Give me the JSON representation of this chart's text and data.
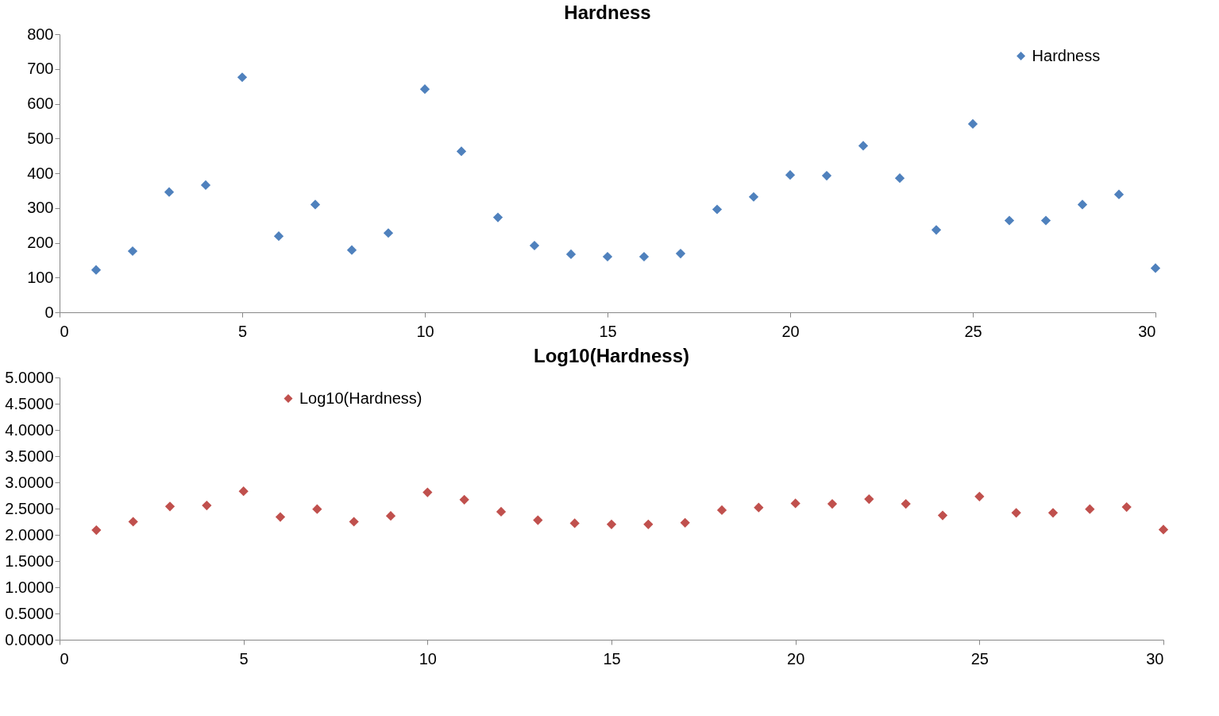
{
  "chart_data": [
    {
      "type": "scatter",
      "title": "Hardness",
      "x": [
        1,
        2,
        3,
        4,
        5,
        6,
        7,
        8,
        9,
        10,
        11,
        12,
        13,
        14,
        15,
        16,
        17,
        18,
        19,
        20,
        21,
        22,
        23,
        24,
        25,
        26,
        27,
        28,
        29,
        30
      ],
      "series": [
        {
          "name": "Hardness",
          "color": "#4f81bd",
          "values": [
            122,
            176,
            346,
            366,
            676,
            219,
            310,
            179,
            228,
            642,
            463,
            273,
            192,
            167,
            160,
            160,
            169,
            296,
            332,
            395,
            393,
            479,
            386,
            237,
            542,
            264,
            264,
            310,
            339,
            127
          ]
        }
      ],
      "xlim": [
        0,
        30
      ],
      "xticks": [
        0,
        5,
        10,
        15,
        20,
        25,
        30
      ],
      "ylim": [
        0,
        800
      ],
      "yticks": [
        0,
        100,
        200,
        300,
        400,
        500,
        600,
        700,
        800
      ],
      "marker": "diamond",
      "grid": false,
      "legend": "top right"
    },
    {
      "type": "scatter",
      "title": "Log10(Hardness)",
      "x": [
        1,
        2,
        3,
        4,
        5,
        6,
        7,
        8,
        9,
        10,
        11,
        12,
        13,
        14,
        15,
        16,
        17,
        18,
        19,
        20,
        21,
        22,
        23,
        24,
        25,
        26,
        27,
        28,
        29,
        30
      ],
      "series": [
        {
          "name": "Log10(Hardness)",
          "color": "#c0504d",
          "values": [
            2.09,
            2.25,
            2.54,
            2.56,
            2.83,
            2.34,
            2.49,
            2.25,
            2.36,
            2.81,
            2.67,
            2.44,
            2.28,
            2.22,
            2.2,
            2.2,
            2.23,
            2.47,
            2.52,
            2.6,
            2.59,
            2.68,
            2.59,
            2.37,
            2.73,
            2.42,
            2.42,
            2.49,
            2.53,
            2.1
          ]
        }
      ],
      "xlim": [
        0,
        30
      ],
      "xticks": [
        0,
        5,
        10,
        15,
        20,
        25,
        30
      ],
      "ylim": [
        0,
        5
      ],
      "yticks": [
        {
          "value": 0,
          "label": "0.0000"
        },
        {
          "value": 0.5,
          "label": "0.5000"
        },
        {
          "value": 1,
          "label": "1.0000"
        },
        {
          "value": 1.5,
          "label": "1.5000"
        },
        {
          "value": 2,
          "label": "2.0000"
        },
        {
          "value": 2.5,
          "label": "2.5000"
        },
        {
          "value": 3,
          "label": "3.0000"
        },
        {
          "value": 3.5,
          "label": "3.5000"
        },
        {
          "value": 4,
          "label": "4.0000"
        },
        {
          "value": 4.5,
          "label": "4.5000"
        },
        {
          "value": 5,
          "label": "5.0000"
        }
      ],
      "marker": "diamond",
      "grid": false,
      "legend": "top left"
    }
  ]
}
